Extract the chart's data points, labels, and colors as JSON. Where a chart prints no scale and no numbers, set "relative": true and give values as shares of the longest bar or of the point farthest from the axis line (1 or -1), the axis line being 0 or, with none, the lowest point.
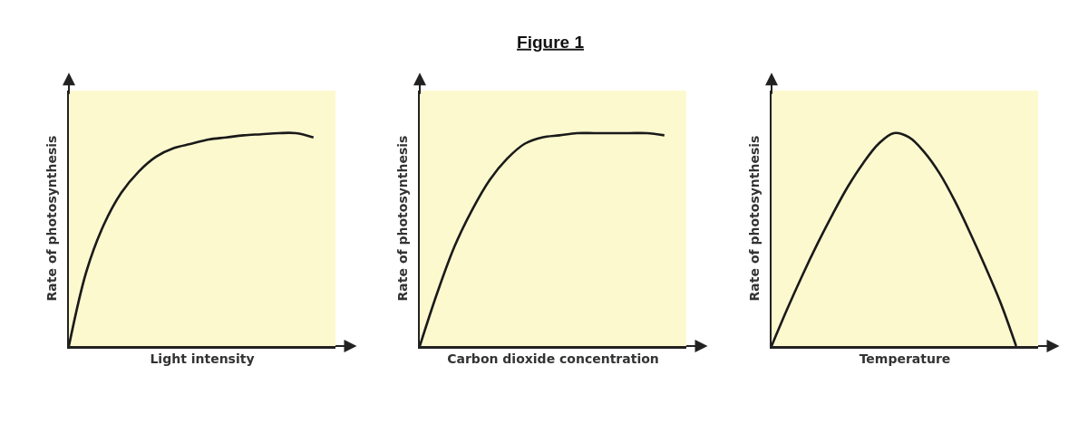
{
  "chart_data": [
    {
      "type": "line",
      "xlabel": "Light intensity",
      "ylabel": "Rate of photosynthesis",
      "relative": true,
      "color": "#1a1a1a",
      "categories": [
        null,
        null,
        null,
        null,
        null,
        null,
        null,
        null,
        null,
        null,
        null,
        null,
        null,
        null,
        null
      ],
      "values": [
        0,
        0.35,
        0.57,
        0.72,
        0.82,
        0.89,
        0.93,
        0.95,
        0.97,
        0.98,
        0.99,
        0.995,
        1,
        1,
        0.98
      ]
    },
    {
      "type": "line",
      "title": "Figure 1",
      "xlabel": "Carbon dioxide concentration",
      "ylabel": "Rate of photosynthesis",
      "relative": true,
      "color": "#1a1a1a",
      "categories": [
        null,
        null,
        null,
        null,
        null,
        null,
        null,
        null,
        null,
        null,
        null,
        null,
        null,
        null,
        null
      ],
      "values": [
        0,
        0.25,
        0.47,
        0.64,
        0.78,
        0.88,
        0.95,
        0.98,
        0.99,
        1,
        1,
        1,
        1,
        1,
        0.99
      ]
    },
    {
      "type": "line",
      "xlabel": "Temperature",
      "ylabel": "Rate of photosynthesis",
      "relative": true,
      "color": "#1a1a1a",
      "categories": [
        null,
        null,
        null,
        null,
        null,
        null,
        null,
        null,
        null,
        null,
        null,
        null,
        null,
        null,
        null,
        null,
        null
      ],
      "values": [
        0,
        0.17,
        0.33,
        0.48,
        0.62,
        0.75,
        0.86,
        0.95,
        1,
        0.98,
        0.91,
        0.81,
        0.68,
        0.53,
        0.37,
        0.2,
        0
      ]
    }
  ]
}
